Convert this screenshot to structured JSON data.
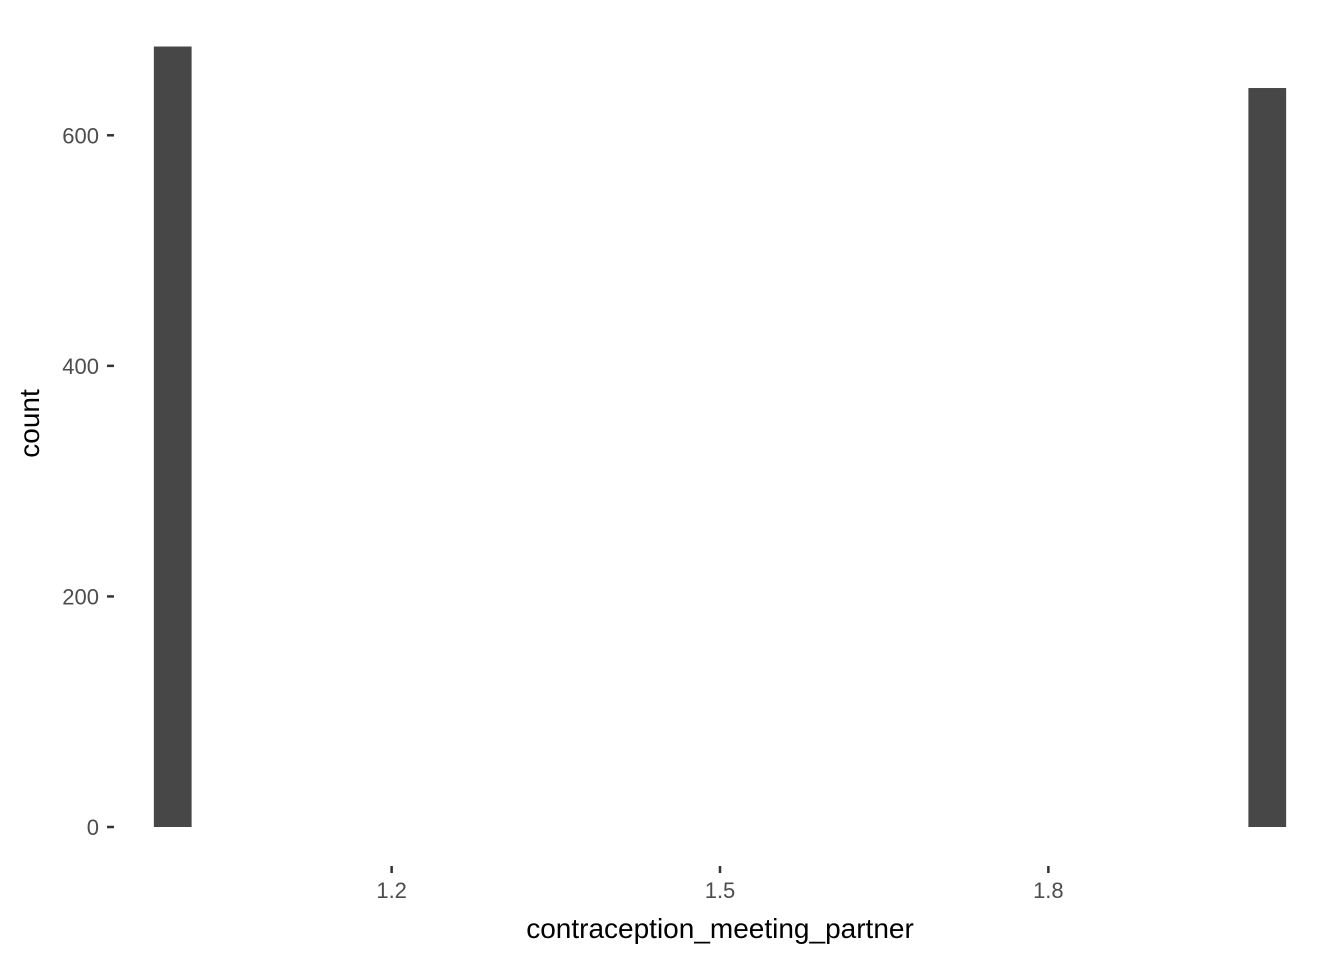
{
  "chart_data": {
    "type": "bar",
    "subtype": "histogram",
    "xlabel": "contraception_meeting_partner",
    "ylabel": "count",
    "x_ticks": [
      1.2,
      1.5,
      1.8
    ],
    "x_tick_labels": [
      "1.2",
      "1.5",
      "1.8"
    ],
    "y_ticks": [
      0,
      200,
      400,
      600
    ],
    "y_tick_labels": [
      "0",
      "200",
      "400",
      "600"
    ],
    "xlim": [
      0.95,
      2.05
    ],
    "ylim": [
      0,
      700
    ],
    "bins": [
      {
        "x": 1.0,
        "count": 677
      },
      {
        "x": 2.0,
        "count": 641
      }
    ],
    "bin_width": 0.0345,
    "grid": false,
    "legend": "none",
    "colors": {
      "bar": "#474747",
      "background": "#ffffff"
    }
  }
}
